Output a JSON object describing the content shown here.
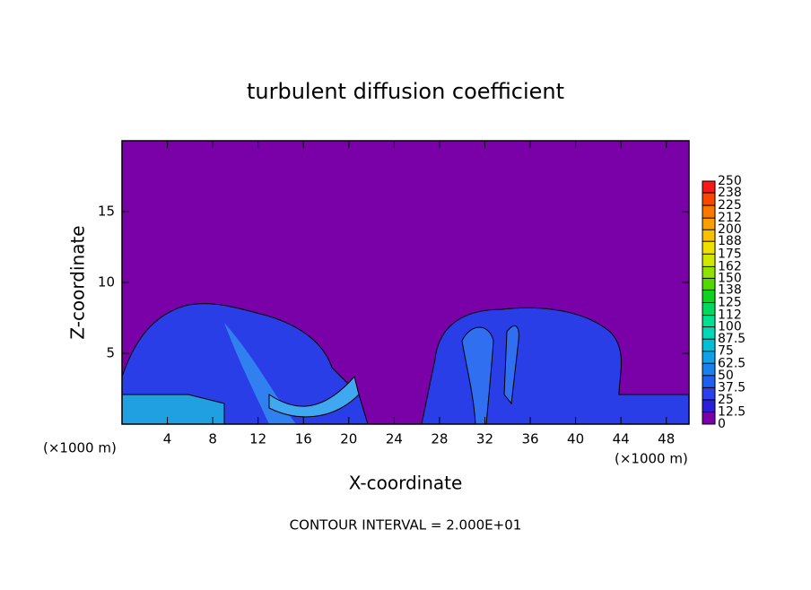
{
  "chart_data": {
    "type": "heatmap",
    "title": "turbulent diffusion coefficient",
    "xlabel": "X-coordinate",
    "ylabel": "Z-coordinate",
    "x_unit": "(×1000 m)",
    "x_unit_right": "(×1000 m)",
    "footnote": "CONTOUR INTERVAL = 2.000E+01",
    "xlim": [
      0,
      50
    ],
    "xticks": [
      4,
      8,
      12,
      16,
      20,
      24,
      28,
      32,
      36,
      40,
      44,
      48
    ],
    "ylim": [
      0,
      20
    ],
    "yticks": [
      5,
      10,
      15
    ],
    "background_color": "#7a00a8",
    "colorbar": {
      "levels": [
        0,
        12.5,
        25,
        37.5,
        50,
        62.5,
        75,
        87.5,
        100,
        112,
        125,
        138,
        150,
        162,
        175,
        188,
        200,
        212,
        225,
        238,
        250
      ],
      "colors": [
        "#7a00a8",
        "#2a20d8",
        "#2a40ea",
        "#2060f0",
        "#1a80f0",
        "#10a0e8",
        "#00c0d8",
        "#00d8b8",
        "#00e090",
        "#00d860",
        "#10d020",
        "#50d800",
        "#90e000",
        "#d0e800",
        "#f0e000",
        "#f8c000",
        "#f8a000",
        "#f87800",
        "#f84800",
        "#f81818"
      ]
    }
  }
}
